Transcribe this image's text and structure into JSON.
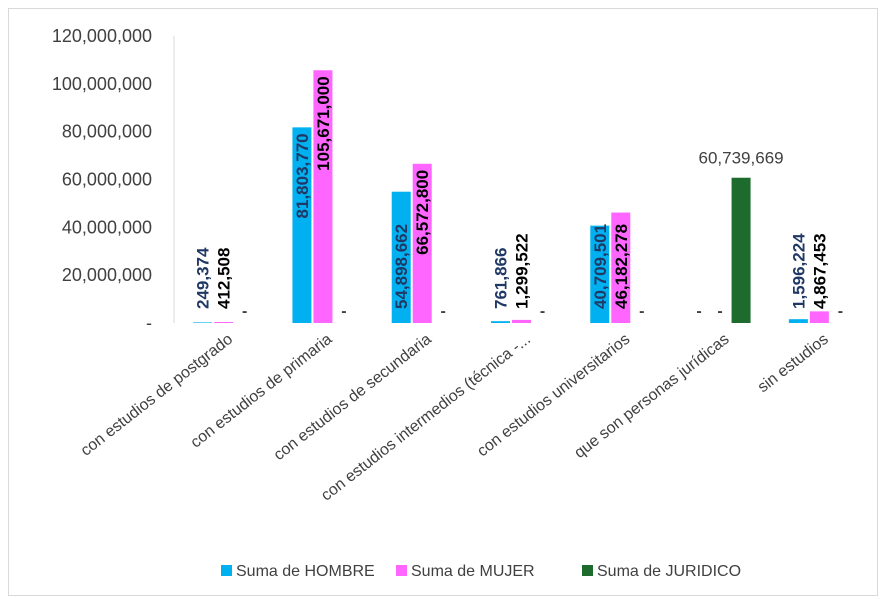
{
  "chart_data": {
    "type": "bar",
    "title": "",
    "xlabel": "",
    "ylabel": "",
    "ylim": [
      0,
      120000000
    ],
    "y_ticks": [
      "-",
      "20,000,000",
      "40,000,000",
      "60,000,000",
      "80,000,000",
      "100,000,000",
      "120,000,000"
    ],
    "y_tick_values": [
      0,
      20000000,
      40000000,
      60000000,
      80000000,
      100000000,
      120000000
    ],
    "grid": false,
    "legend_position": "bottom",
    "categories": [
      "con estudios de postgrado",
      "con estudios de primaria",
      "con estudios de secundaria",
      "con estudios intermedios (técnica -...",
      "con estudios universitarios",
      "que son personas jurídicas",
      "sin estudios"
    ],
    "series": [
      {
        "name": "Suma de HOMBRE",
        "color": "#00b0f0",
        "label_color": "#1f3864",
        "values": [
          249374,
          81803770,
          54898662,
          761866,
          40709501,
          0,
          1596224
        ],
        "labels": [
          "249,374",
          "81,803,770",
          "54,898,662",
          "761,866",
          "40,709,501",
          "-",
          "1,596,224"
        ]
      },
      {
        "name": "Suma de MUJER",
        "color": "#ff66ff",
        "label_color": "#000000",
        "values": [
          412508,
          105671000,
          66572800,
          1299522,
          46182278,
          0,
          4867453
        ],
        "labels": [
          "412,508",
          "105,671,000",
          "66,572,800",
          "1,299,522",
          "46,182,278",
          "-",
          "4,867,453"
        ]
      },
      {
        "name": "Suma de JURIDICO",
        "color": "#1e6b2e",
        "label_color": "#404040",
        "values": [
          0,
          0,
          0,
          0,
          0,
          60739669,
          0
        ],
        "labels": [
          "-",
          "-",
          "-",
          "-",
          "-",
          "60,739,669",
          "-"
        ]
      }
    ]
  }
}
